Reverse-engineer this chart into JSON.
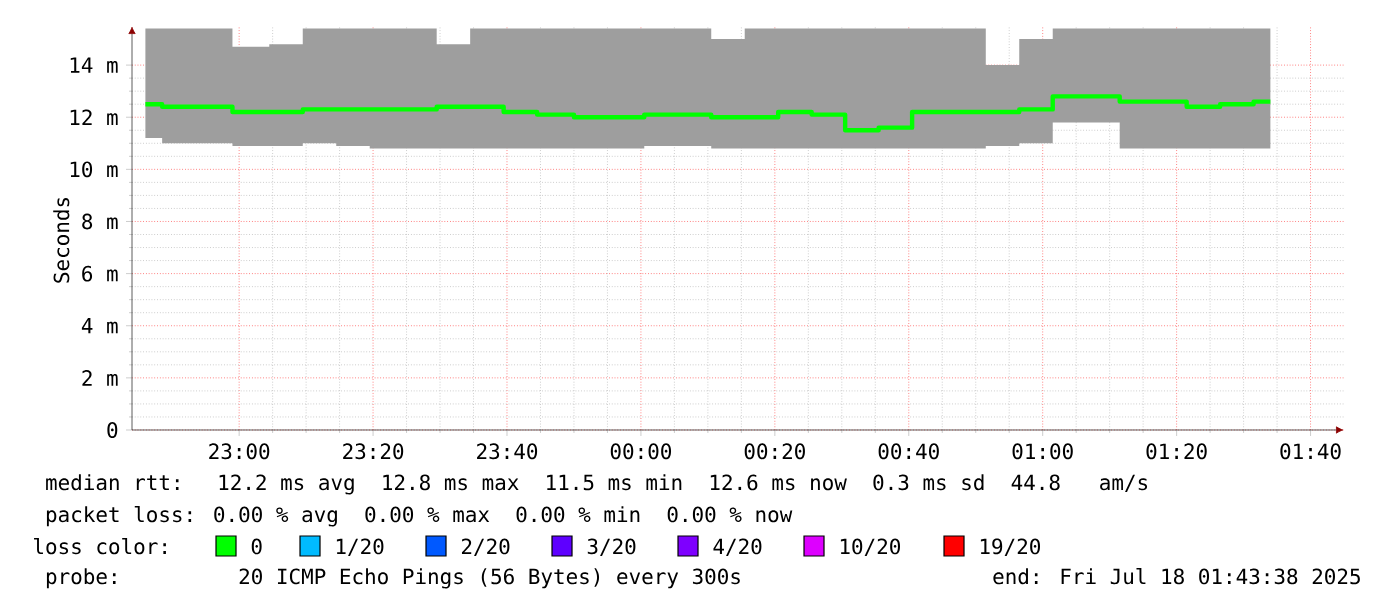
{
  "chart_data": {
    "type": "step",
    "ylabel": "Seconds",
    "x": [
      "2025-07-17T22:46",
      "2025-07-17T22:51",
      "2025-07-17T22:56",
      "2025-07-17T23:02",
      "2025-07-17T23:07",
      "2025-07-17T23:12",
      "2025-07-17T23:17",
      "2025-07-17T23:22",
      "2025-07-17T23:27",
      "2025-07-17T23:32",
      "2025-07-17T23:37",
      "2025-07-17T23:42",
      "2025-07-17T23:47",
      "2025-07-17T23:53",
      "2025-07-17T23:58",
      "2025-07-18T00:03",
      "2025-07-18T00:08",
      "2025-07-18T00:13",
      "2025-07-18T00:18",
      "2025-07-18T00:23",
      "2025-07-18T00:28",
      "2025-07-18T00:33",
      "2025-07-18T00:38",
      "2025-07-18T00:43",
      "2025-07-18T00:49",
      "2025-07-18T00:54",
      "2025-07-18T00:59",
      "2025-07-18T01:04",
      "2025-07-18T01:09",
      "2025-07-18T01:14",
      "2025-07-18T01:19",
      "2025-07-18T01:24",
      "2025-07-18T01:29",
      "2025-07-18T01:34"
    ],
    "series": [
      {
        "name": "0",
        "color": "#00ff00",
        "values": [
          12.5,
          12.4,
          12.4,
          12.2,
          12.2,
          12.3,
          12.3,
          12.3,
          12.3,
          12.4,
          12.4,
          12.2,
          12.1,
          12.0,
          12.0,
          12.1,
          12.1,
          12.0,
          12.0,
          12.2,
          12.1,
          11.5,
          11.6,
          12.2,
          12.2,
          12.2,
          12.3,
          12.8,
          12.8,
          12.6,
          12.6,
          12.4,
          12.5,
          12.6
        ],
        "lower": [
          11.2,
          11.0,
          11.0,
          10.9,
          10.9,
          11.0,
          10.9,
          10.8,
          10.8,
          10.8,
          10.8,
          10.8,
          10.8,
          10.8,
          10.8,
          10.9,
          10.9,
          10.8,
          10.8,
          10.8,
          10.8,
          10.8,
          10.8,
          10.8,
          10.8,
          10.9,
          11.0,
          11.8,
          11.8,
          10.8,
          10.8,
          10.8,
          10.8,
          10.8
        ],
        "upper": [
          15.4,
          15.4,
          15.4,
          14.7,
          14.8,
          15.4,
          15.4,
          15.4,
          15.4,
          14.8,
          15.4,
          15.4,
          15.4,
          15.4,
          15.4,
          15.4,
          15.4,
          15.0,
          15.4,
          15.4,
          15.4,
          15.4,
          15.4,
          15.4,
          15.4,
          14.0,
          15.0,
          15.4,
          15.4,
          15.4,
          15.4,
          15.4,
          15.4,
          15.4
        ]
      },
      {
        "name": "1/20",
        "color": "#00bbff",
        "values": [
          null,
          null,
          null,
          null,
          null,
          null,
          null,
          null,
          null,
          null,
          null,
          null,
          null,
          null,
          null,
          null,
          null,
          null,
          null,
          null,
          null,
          null,
          null,
          null,
          null,
          null,
          null,
          null,
          null,
          null,
          null,
          null,
          null,
          null
        ]
      },
      {
        "name": "2/20",
        "color": "#0059ff",
        "values": [
          null,
          null,
          null,
          null,
          null,
          null,
          null,
          null,
          null,
          null,
          null,
          null,
          null,
          null,
          null,
          null,
          null,
          null,
          null,
          null,
          null,
          null,
          null,
          null,
          null,
          null,
          null,
          null,
          null,
          null,
          null,
          null,
          null,
          null
        ]
      },
      {
        "name": "3/20",
        "color": "#5e00ff",
        "values": [
          null,
          null,
          null,
          null,
          null,
          null,
          null,
          null,
          null,
          null,
          null,
          null,
          null,
          null,
          null,
          null,
          null,
          null,
          null,
          null,
          null,
          null,
          null,
          null,
          null,
          null,
          null,
          null,
          null,
          null,
          null,
          null,
          null,
          null
        ]
      },
      {
        "name": "4/20",
        "color": "#7e00ff",
        "values": [
          null,
          null,
          null,
          null,
          null,
          null,
          null,
          null,
          null,
          null,
          null,
          null,
          null,
          null,
          null,
          null,
          null,
          null,
          null,
          null,
          null,
          null,
          null,
          null,
          null,
          null,
          null,
          null,
          null,
          null,
          null,
          null,
          null,
          null
        ]
      },
      {
        "name": "10/20",
        "color": "#dd00ff",
        "values": [
          null,
          null,
          null,
          null,
          null,
          null,
          null,
          null,
          null,
          null,
          null,
          null,
          null,
          null,
          null,
          null,
          null,
          null,
          null,
          null,
          null,
          null,
          null,
          null,
          null,
          null,
          null,
          null,
          null,
          null,
          null,
          null,
          null,
          null
        ]
      },
      {
        "name": "19/20",
        "color": "#ff0000",
        "values": [
          null,
          null,
          null,
          null,
          null,
          null,
          null,
          null,
          null,
          null,
          null,
          null,
          null,
          null,
          null,
          null,
          null,
          null,
          null,
          null,
          null,
          null,
          null,
          null,
          null,
          null,
          null,
          null,
          null,
          null,
          null,
          null,
          null,
          null
        ]
      }
    ],
    "xlim": [
      "2025-07-17T22:44",
      "2025-07-18T01:45"
    ],
    "xticks": [
      {
        "value": "2025-07-17T23:00",
        "label": "23:00"
      },
      {
        "value": "2025-07-17T23:20",
        "label": "23:20"
      },
      {
        "value": "2025-07-17T23:40",
        "label": "23:40"
      },
      {
        "value": "2025-07-18T00:00",
        "label": "00:00"
      },
      {
        "value": "2025-07-18T00:20",
        "label": "00:20"
      },
      {
        "value": "2025-07-18T00:40",
        "label": "00:40"
      },
      {
        "value": "2025-07-18T01:00",
        "label": "01:00"
      },
      {
        "value": "2025-07-18T01:20",
        "label": "01:20"
      },
      {
        "value": "2025-07-18T01:40",
        "label": "01:40"
      }
    ],
    "ylim": [
      0,
      15.5
    ],
    "yticks": [
      0,
      {
        "value": 2,
        "label": "2 m"
      },
      {
        "value": 4,
        "label": "4 m"
      },
      {
        "value": 6,
        "label": "6 m"
      },
      {
        "value": 8,
        "label": "8 m"
      },
      {
        "value": 10,
        "label": "10 m"
      },
      {
        "value": 12,
        "label": "12 m"
      },
      {
        "value": 14,
        "label": "14 m"
      }
    ],
    "grid": true,
    "legend": "bottom",
    "legend_title": "loss color:",
    "annotations": [
      "median rtt:  12.2 ms avg  12.8 ms max  11.5 ms min  12.6 ms now  0.3 ms sd  44.8   am/s",
      "packet loss: 0.00 % avg  0.00 % max  0.00 % min  0.00 % now",
      "probe:       20 ICMP Echo Pings (56 Bytes) every 300s",
      "end: Fri Jul 18 01:43:38 2025"
    ]
  }
}
